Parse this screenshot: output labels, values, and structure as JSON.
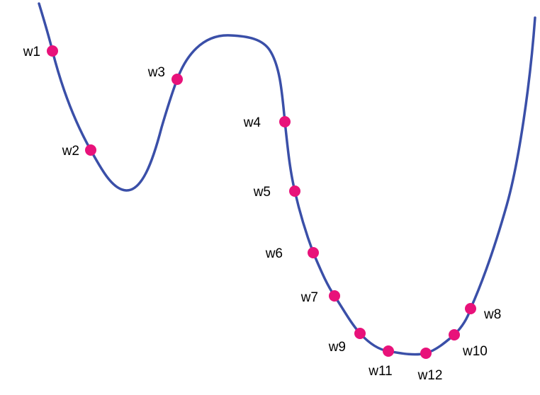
{
  "colors": {
    "curve": "#3a4fa8",
    "point": "#e8127a",
    "label": "#000000",
    "background": "#ffffff"
  },
  "points": [
    {
      "label": "w1"
    },
    {
      "label": "w2"
    },
    {
      "label": "w3"
    },
    {
      "label": "w4"
    },
    {
      "label": "w5"
    },
    {
      "label": "w6"
    },
    {
      "label": "w7"
    },
    {
      "label": "w8"
    },
    {
      "label": "w9"
    },
    {
      "label": "w10"
    },
    {
      "label": "w11"
    },
    {
      "label": "w12"
    }
  ]
}
